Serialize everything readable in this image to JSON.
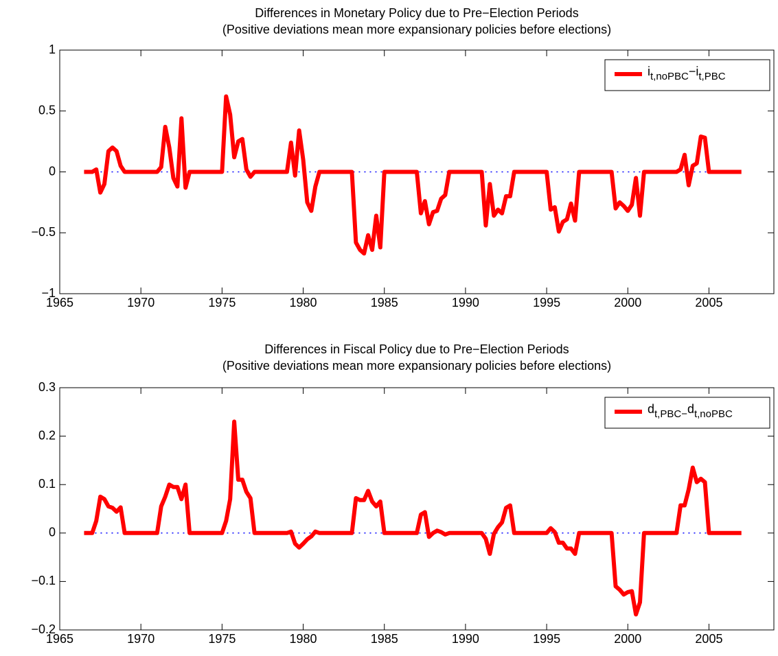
{
  "chart_data": [
    {
      "type": "line",
      "title": "Differences in Monetary Policy due to Pre−Election Periods",
      "subtitle": "(Positive deviations mean more expansionary policies before elections)",
      "xlim": [
        1965,
        2009
      ],
      "ylim": [
        -1,
        1
      ],
      "xticks": [
        1965,
        1970,
        1975,
        1980,
        1985,
        1990,
        1995,
        2000,
        2005
      ],
      "yticks": [
        {
          "value": -1,
          "label": "−1"
        },
        {
          "value": -0.5,
          "label": "−0.5"
        },
        0,
        0.5,
        1
      ],
      "zero_line": {
        "value": 0,
        "color": "#0000ff"
      },
      "legend": "upper right",
      "series": [
        {
          "name": "i_{t,noPBC}−i_{t,PBC}",
          "color": "#ff0000",
          "x": [
            1966.5,
            1967,
            1967.25,
            1967.5,
            1967.75,
            1968,
            1968.25,
            1968.5,
            1968.75,
            1969,
            1971,
            1971.25,
            1971.5,
            1971.75,
            1972,
            1972.25,
            1972.5,
            1972.75,
            1973,
            1975,
            1975.25,
            1975.5,
            1975.75,
            1976,
            1976.25,
            1976.5,
            1976.75,
            1977,
            1979,
            1979.25,
            1979.5,
            1979.75,
            1980,
            1980.25,
            1980.5,
            1980.75,
            1981,
            1983,
            1983.25,
            1983.5,
            1983.75,
            1984,
            1984.25,
            1984.5,
            1984.75,
            1985,
            1987,
            1987.25,
            1987.5,
            1987.75,
            1988,
            1988.25,
            1988.5,
            1988.75,
            1989,
            1991,
            1991.25,
            1991.5,
            1991.75,
            1992,
            1992.25,
            1992.5,
            1992.75,
            1993,
            1995,
            1995.25,
            1995.5,
            1995.75,
            1996,
            1996.25,
            1996.5,
            1996.75,
            1997,
            1999,
            1999.25,
            1999.5,
            1999.75,
            2000,
            2000.25,
            2000.5,
            2000.75,
            2001,
            2003,
            2003.25,
            2003.5,
            2003.75,
            2004,
            2004.25,
            2004.5,
            2004.75,
            2005,
            2007
          ],
          "values": [
            0,
            0,
            0.02,
            -0.17,
            -0.1,
            0.17,
            0.2,
            0.17,
            0.05,
            0,
            0,
            0.04,
            0.37,
            0.2,
            -0.05,
            -0.12,
            0.44,
            -0.13,
            0,
            0,
            0.62,
            0.47,
            0.12,
            0.25,
            0.27,
            0.02,
            -0.04,
            0,
            0,
            0.24,
            -0.03,
            0.34,
            0.1,
            -0.25,
            -0.32,
            -0.12,
            0,
            0,
            -0.58,
            -0.64,
            -0.67,
            -0.52,
            -0.64,
            -0.36,
            -0.62,
            0,
            0,
            -0.34,
            -0.24,
            -0.43,
            -0.33,
            -0.32,
            -0.22,
            -0.19,
            0,
            0,
            -0.44,
            -0.1,
            -0.36,
            -0.31,
            -0.34,
            -0.2,
            -0.2,
            0,
            0,
            -0.31,
            -0.29,
            -0.49,
            -0.41,
            -0.39,
            -0.26,
            -0.4,
            0,
            0,
            -0.3,
            -0.25,
            -0.28,
            -0.32,
            -0.27,
            -0.05,
            -0.36,
            0,
            0,
            0.02,
            0.14,
            -0.11,
            0.05,
            0.07,
            0.29,
            0.28,
            0,
            0
          ]
        }
      ]
    },
    {
      "type": "line",
      "title": "Differences in Fiscal Policy due to Pre−Election Periods",
      "subtitle": "(Positive deviations mean more expansionary policies before elections)",
      "xlim": [
        1965,
        2009
      ],
      "ylim": [
        -0.2,
        0.3
      ],
      "xticks": [
        1965,
        1970,
        1975,
        1980,
        1985,
        1990,
        1995,
        2000,
        2005
      ],
      "yticks": [
        {
          "value": -0.2,
          "label": "−0.2"
        },
        {
          "value": -0.1,
          "label": "−0.1"
        },
        0,
        0.1,
        0.2,
        0.3
      ],
      "zero_line": {
        "value": 0,
        "color": "#0000ff"
      },
      "legend": "upper right",
      "series": [
        {
          "name": "d_{t,PBC−}d_{t,noPBC}",
          "color": "#ff0000",
          "x": [
            1966.5,
            1967,
            1967.25,
            1967.5,
            1967.75,
            1968,
            1968.25,
            1968.5,
            1968.75,
            1969,
            1971,
            1971.25,
            1971.5,
            1971.75,
            1972,
            1972.25,
            1972.5,
            1972.75,
            1973,
            1975,
            1975.25,
            1975.5,
            1975.75,
            1976,
            1976.25,
            1976.5,
            1976.75,
            1977,
            1979,
            1979.25,
            1979.5,
            1979.75,
            1980,
            1980.25,
            1980.5,
            1980.75,
            1981,
            1983,
            1983.25,
            1983.5,
            1983.75,
            1984,
            1984.25,
            1984.5,
            1984.75,
            1985,
            1987,
            1987.25,
            1987.5,
            1987.75,
            1988,
            1988.25,
            1988.5,
            1988.75,
            1989,
            1991,
            1991.25,
            1991.5,
            1991.75,
            1992,
            1992.25,
            1992.5,
            1992.75,
            1993,
            1995,
            1995.25,
            1995.5,
            1995.75,
            1996,
            1996.25,
            1996.5,
            1996.75,
            1997,
            1999,
            1999.25,
            1999.5,
            1999.75,
            2000,
            2000.25,
            2000.5,
            2000.75,
            2001,
            2003,
            2003.25,
            2003.5,
            2003.75,
            2004,
            2004.25,
            2004.5,
            2004.75,
            2005,
            2007
          ],
          "values": [
            0,
            0,
            0.025,
            0.075,
            0.07,
            0.055,
            0.052,
            0.044,
            0.053,
            0,
            0,
            0.055,
            0.075,
            0.1,
            0.095,
            0.095,
            0.07,
            0.1,
            0,
            0,
            0.025,
            0.07,
            0.23,
            0.11,
            0.11,
            0.085,
            0.072,
            0,
            0,
            0.003,
            -0.022,
            -0.03,
            -0.022,
            -0.013,
            -0.007,
            0.003,
            0,
            0,
            0.072,
            0.068,
            0.068,
            0.087,
            0.065,
            0.055,
            0.065,
            0,
            0,
            0.038,
            0.043,
            -0.008,
            0,
            0.005,
            0.002,
            -0.003,
            0,
            0,
            -0.012,
            -0.043,
            -0.002,
            0.012,
            0.022,
            0.052,
            0.057,
            0,
            0,
            0.01,
            0.002,
            -0.02,
            -0.02,
            -0.032,
            -0.032,
            -0.043,
            0,
            0,
            -0.11,
            -0.117,
            -0.127,
            -0.122,
            -0.12,
            -0.168,
            -0.143,
            0,
            0,
            0.057,
            0.057,
            0.09,
            0.135,
            0.105,
            0.112,
            0.105,
            0,
            0
          ]
        }
      ]
    }
  ]
}
